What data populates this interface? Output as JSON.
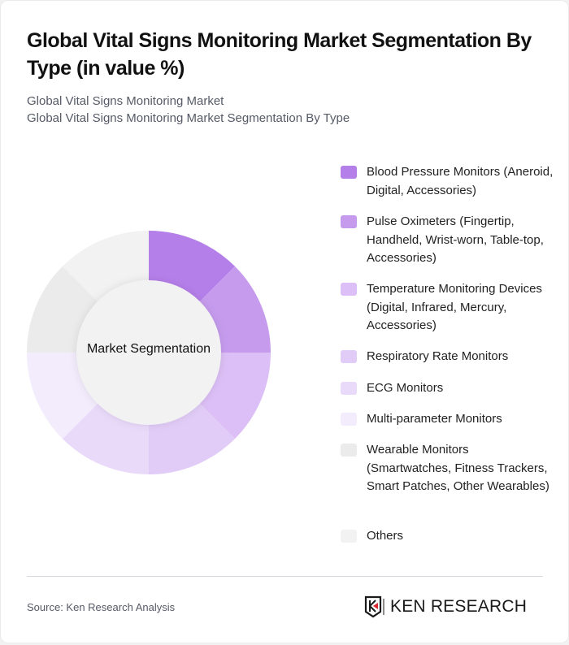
{
  "header": {
    "title": "Global Vital Signs Monitoring Market Segmentation By Type (in value %)",
    "subtitle_line1": "Global Vital Signs Monitoring Market",
    "subtitle_line2": "Global Vital Signs Monitoring Market Segmentation By Type"
  },
  "chart": {
    "center_label": "Market Segmentation"
  },
  "legend": [
    {
      "label": "Blood Pressure Monitors (Aneroid, Digital, Accessories)",
      "color": "#b57fea"
    },
    {
      "label": "Pulse Oximeters (Fingertip, Handheld, Wrist-worn, Table-top, Accessories)",
      "color": "#c69bee"
    },
    {
      "label": "Temperature Monitoring Devices (Digital, Infrared, Mercury, Accessories)",
      "color": "#dcbff6"
    },
    {
      "label": "Respiratory Rate Monitors",
      "color": "#e1ccf7"
    },
    {
      "label": "ECG Monitors",
      "color": "#e9dafa"
    },
    {
      "label": "Multi-parameter Monitors",
      "color": "#f3ecfc"
    },
    {
      "label": "Wearable Monitors (Smartwatches, Fitness Trackers, Smart Patches, Other Wearables)",
      "color": "#ebebeb"
    },
    {
      "label": "Others",
      "color": "#f2f2f2"
    }
  ],
  "footer": {
    "source": "Source: Ken Research Analysis",
    "logo_text": "KEN RESEARCH"
  },
  "chart_data": {
    "type": "pie",
    "variant": "donut",
    "title": "Global Vital Signs Monitoring Market Segmentation By Type (in value %)",
    "subtitle": "Global Vital Signs Monitoring Market / Global Vital Signs Monitoring Market Segmentation By Type",
    "center_label": "Market Segmentation",
    "categories": [
      "Blood Pressure Monitors (Aneroid, Digital, Accessories)",
      "Pulse Oximeters (Fingertip, Handheld, Wrist-worn, Table-top, Accessories)",
      "Temperature Monitoring Devices (Digital, Infrared, Mercury, Accessories)",
      "Respiratory Rate Monitors",
      "ECG Monitors",
      "Multi-parameter Monitors",
      "Wearable Monitors (Smartwatches, Fitness Trackers, Smart Patches, Other Wearables)",
      "Others"
    ],
    "values": [
      12.5,
      12.5,
      12.5,
      12.5,
      12.5,
      12.5,
      12.5,
      12.5
    ],
    "colors": [
      "#b57fea",
      "#c69bee",
      "#dcbff6",
      "#e1ccf7",
      "#e9dafa",
      "#f3ecfc",
      "#ebebeb",
      "#f2f2f2"
    ],
    "legend_position": "right",
    "source": "Source: Ken Research Analysis"
  }
}
